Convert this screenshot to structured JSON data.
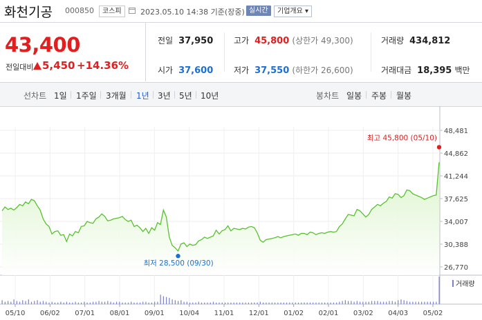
{
  "header": {
    "stock_name": "화천기공",
    "stock_code": "000850",
    "market_badge": "코스피",
    "as_of": "2023.05.10 14:38  기준(장중)",
    "live_badge": "실시간",
    "company_button": "기업개요 ▾"
  },
  "price": {
    "current": "43,400",
    "change_label": "전일대비",
    "change": "5,450",
    "change_pct": "+14.36%"
  },
  "stats": {
    "prev_close_label": "전일",
    "prev_close": "37,950",
    "high_label": "고가",
    "high": "45,800",
    "upper_limit": "(상한가 49,300)",
    "volume_label": "거래량",
    "volume": "434,812",
    "open_label": "시가",
    "open": "37,600",
    "low_label": "저가",
    "low": "37,550",
    "lower_limit": "(하한가 26,600)",
    "value_label": "거래대금",
    "value": "18,395",
    "value_unit": "백만"
  },
  "period_bar": {
    "line_chart_label": "선차트",
    "periods": [
      "1일",
      "1주일",
      "3개월",
      "1년",
      "3년",
      "5년",
      "10년"
    ],
    "selected_period": "1년",
    "candle_chart_label": "봉차트",
    "candles": [
      "일봉",
      "주봉",
      "월봉"
    ]
  },
  "colors": {
    "up": "#e02020",
    "down": "#1c6fd1",
    "line": "#56c22e",
    "fill_top": "#d9f3c8",
    "volume": "#7b7ec8"
  },
  "chart_data": {
    "type": "area",
    "x_ticks": [
      "05/10",
      "06/02",
      "07/01",
      "08/01",
      "09/01",
      "10/04",
      "11/01",
      "12/01",
      "01/02",
      "02/01",
      "03/02",
      "04/03",
      "05/02"
    ],
    "y_ticks": [
      48481,
      44862,
      41244,
      37625,
      34007,
      30388,
      26770
    ],
    "ylim": [
      26770,
      48481
    ],
    "max_label": "최고 45,800 (05/10)",
    "min_label": "최저 28,500 (09/30)",
    "volume_legend": "거래량",
    "series": [
      {
        "values": [
          35700,
          36300,
          35900,
          36100,
          35800,
          36200,
          36700,
          36500,
          37100,
          36800,
          37500,
          37300,
          36500,
          35800,
          34400,
          33600,
          33200,
          32000,
          32400,
          32500,
          31800,
          31900,
          30800,
          32000,
          31700,
          32400,
          32200,
          33200,
          33300,
          34000,
          33800,
          33700,
          34400,
          34700,
          35200,
          34800,
          34100,
          34200,
          34400,
          34500,
          34600,
          34800,
          34300,
          34000,
          34200,
          33200,
          33400,
          33000,
          32400,
          32900,
          32100,
          33000,
          32600,
          33800,
          33500,
          35800,
          34700,
          31500,
          30200,
          29800,
          29300,
          30400,
          30600,
          30000,
          30400,
          30200,
          30300,
          30900,
          31100,
          31500,
          31300,
          31500,
          31700,
          32600,
          32000,
          32500,
          32700,
          33300,
          32500,
          32900,
          32800,
          32700,
          32900,
          32800,
          33100,
          33200,
          33000,
          32200,
          31000,
          30700,
          31100,
          31200,
          31300,
          31400,
          31600,
          31400,
          31600,
          31700,
          31800,
          31900,
          32000,
          31800,
          32100,
          32100,
          31900,
          32300,
          32200,
          31900,
          32100,
          32200,
          32100,
          32300,
          32400,
          32300,
          32400,
          33200,
          33600,
          34400,
          35100,
          35000,
          34900,
          35900,
          35700,
          35200,
          34700,
          35100,
          35900,
          36300,
          36700,
          36500,
          36900,
          37200,
          37900,
          37700,
          38400,
          38300,
          37800,
          38100,
          39000,
          38900,
          38400,
          38200,
          38000,
          37800,
          37500,
          37700,
          37900,
          38100,
          38200,
          43400
        ]
      }
    ],
    "volume_values": [
      0.5,
      0.3,
      0.4,
      0.3,
      0.6,
      0.4,
      0.3,
      0.5,
      0.4,
      0.6,
      0.3,
      0.4,
      0.5,
      0.3,
      0.4,
      0.3,
      0.2,
      0.3,
      0.2,
      0.2,
      0.3,
      0.2,
      0.3,
      0.2,
      0.2,
      0.3,
      0.2,
      0.2,
      0.3,
      0.2,
      0.2,
      0.3,
      0.3,
      0.4,
      0.3,
      0.3,
      0.4,
      0.3,
      0.2,
      0.3,
      0.3,
      0.2,
      0.2,
      0.2,
      0.3,
      0.2,
      0.2,
      0.2,
      0.3,
      0.3,
      0.2,
      0.2,
      0.3,
      0.3,
      1.2,
      1.0,
      0.9,
      0.8,
      0.6,
      0.5,
      0.4,
      0.5,
      0.3,
      0.3,
      0.2,
      0.2,
      0.2,
      0.3,
      0.2,
      0.2,
      0.2,
      0.2,
      0.3,
      0.2,
      0.2,
      0.2,
      0.2,
      0.2,
      0.2,
      0.2,
      0.2,
      0.2,
      0.2,
      0.2,
      0.2,
      0.2,
      0.2,
      0.2,
      0.3,
      0.2,
      0.2,
      0.2,
      0.2,
      0.2,
      0.2,
      0.2,
      0.2,
      0.2,
      0.2,
      0.2,
      0.2,
      0.2,
      0.2,
      0.2,
      0.2,
      0.2,
      0.2,
      0.2,
      0.2,
      0.2,
      0.2,
      0.2,
      0.2,
      0.2,
      0.2,
      0.3,
      0.4,
      0.5,
      0.4,
      0.4,
      0.3,
      0.4,
      0.3,
      0.3,
      0.3,
      0.3,
      0.4,
      0.4,
      0.4,
      0.3,
      0.3,
      0.3,
      0.4,
      0.4,
      0.3,
      0.5,
      0.6,
      0.5,
      0.4,
      0.3,
      0.3,
      0.3,
      0.3,
      0.3,
      0.3,
      0.3,
      0.3,
      0.3,
      0.3,
      3.5
    ],
    "grid": true
  }
}
